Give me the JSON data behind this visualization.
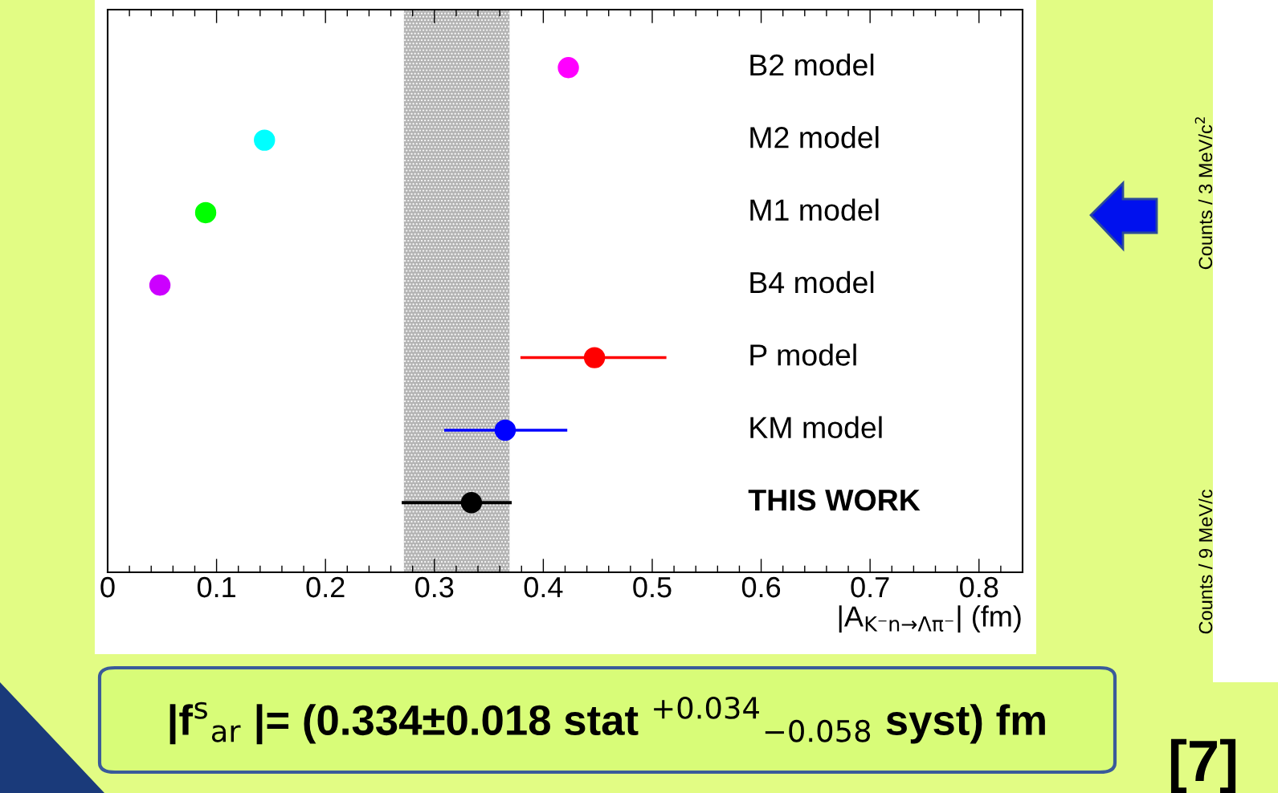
{
  "chart_data": {
    "type": "scatter",
    "orientation": "horizontal",
    "categories": [
      "B2 model",
      "M2 model",
      "M1 model",
      "B4 model",
      "P model",
      "KM model",
      "THIS WORK"
    ],
    "values": [
      0.423,
      0.144,
      0.09,
      0.048,
      0.447,
      0.365,
      0.334
    ],
    "colors": [
      "#ff00ff",
      "#00ffff",
      "#00ff00",
      "#cc00ff",
      "#ff0000",
      "#0000ff",
      "#000000"
    ],
    "errors": [
      null,
      null,
      null,
      null,
      [
        0.379,
        0.513
      ],
      [
        0.309,
        0.422
      ],
      [
        0.27,
        0.371
      ]
    ],
    "xlim": [
      0,
      0.84
    ],
    "xticks": [
      0,
      0.1,
      0.2,
      0.3,
      0.4,
      0.5,
      0.6,
      0.7,
      0.8
    ],
    "xlabel": "|A$_{K⁻n→Λπ⁻}$| (fm)",
    "bands": [
      {
        "axis": "x",
        "from": 0.272,
        "to": 0.369,
        "color": "#b4b4b4"
      }
    ],
    "marker": "circle",
    "grid": false,
    "legend": false,
    "annotations": [
      "|f$^{s}$$_{ar}$ |= (0.334±0.018 stat $^{+0.034}$$_{−0.058}$ syst) fm",
      "[7]",
      "Counts / 3 MeV/c$^{2}$",
      "Counts / 9 MeV/c"
    ]
  }
}
